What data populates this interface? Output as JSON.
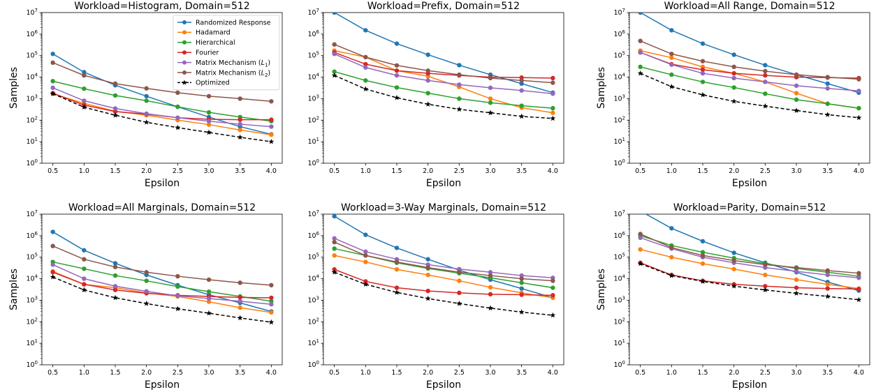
{
  "chart_data": [
    {
      "type": "line",
      "title": "Workload=Histogram, Domain=512",
      "xlabel": "Epsilon",
      "ylabel": "Samples",
      "x": [
        0.5,
        1.0,
        1.5,
        2.0,
        2.5,
        3.0,
        3.5,
        4.0
      ],
      "xticks": [
        "0.5",
        "1.0",
        "1.5",
        "2.0",
        "2.5",
        "3.0",
        "3.5",
        "4.0"
      ],
      "yscale": "log",
      "ylim": [
        1,
        10000000
      ],
      "yticks": [
        "10^0",
        "10^1",
        "10^2",
        "10^3",
        "10^4",
        "10^5",
        "10^6",
        "10^7"
      ],
      "grid": false,
      "legend": "top-right",
      "series": [
        {
          "name": "Randomized Response",
          "values": [
            120000,
            17000,
            4200,
            1300,
            420,
            140,
            50,
            22
          ]
        },
        {
          "name": "Hadamard",
          "values": [
            1700,
            600,
            260,
            170,
            100,
            62,
            35,
            21
          ]
        },
        {
          "name": "Hierarchical",
          "values": [
            6500,
            2900,
            1400,
            800,
            420,
            230,
            140,
            90
          ]
        },
        {
          "name": "Fourier",
          "values": [
            1800,
            500,
            250,
            190,
            130,
            110,
            105,
            105
          ]
        },
        {
          "name": "Matrix Mechanism (L1)",
          "values": [
            3200,
            800,
            350,
            200,
            130,
            90,
            65,
            50
          ]
        },
        {
          "name": "Matrix Mechanism (L2)",
          "values": [
            47000,
            12000,
            5000,
            3000,
            1900,
            1300,
            1000,
            750
          ]
        },
        {
          "name": "Optimized",
          "values": [
            1700,
            400,
            170,
            80,
            45,
            27,
            16,
            10
          ]
        }
      ]
    },
    {
      "type": "line",
      "title": "Workload=Prefix, Domain=512",
      "xlabel": "Epsilon",
      "ylabel": "",
      "x": [
        0.5,
        1.0,
        1.5,
        2.0,
        2.5,
        3.0,
        3.5,
        4.0
      ],
      "xticks": [
        "0.5",
        "1.0",
        "1.5",
        "2.0",
        "2.5",
        "3.0",
        "3.5",
        "4.0"
      ],
      "yscale": "log",
      "ylim": [
        1,
        10000000
      ],
      "yticks": [
        "10^0",
        "10^1",
        "10^2",
        "10^3",
        "10^4",
        "10^5",
        "10^6",
        "10^7"
      ],
      "grid": false,
      "series": [
        {
          "name": "Randomized Response",
          "values": [
            10000000,
            1500000,
            360000,
            110000,
            36000,
            13000,
            5000,
            1900
          ]
        },
        {
          "name": "Hadamard",
          "values": [
            170000,
            85000,
            20000,
            11000,
            3500,
            1000,
            380,
            220
          ]
        },
        {
          "name": "Hierarchical",
          "values": [
            18000,
            7000,
            3300,
            1800,
            1000,
            650,
            470,
            360
          ]
        },
        {
          "name": "Fourier",
          "values": [
            140000,
            40000,
            20000,
            15000,
            12000,
            10000,
            9500,
            9000
          ]
        },
        {
          "name": "Matrix Mechanism (L1)",
          "values": [
            120000,
            28000,
            12000,
            7000,
            4500,
            3200,
            2400,
            1700
          ]
        },
        {
          "name": "Matrix Mechanism (L2)",
          "values": [
            330000,
            85000,
            35000,
            20000,
            13000,
            9000,
            7000,
            5500
          ]
        },
        {
          "name": "Optimized",
          "values": [
            12000,
            2800,
            1100,
            550,
            320,
            220,
            150,
            120
          ]
        }
      ]
    },
    {
      "type": "line",
      "title": "Workload=All Range, Domain=512",
      "xlabel": "Epsilon",
      "ylabel": "Samples",
      "x": [
        0.5,
        1.0,
        1.5,
        2.0,
        2.5,
        3.0,
        3.5,
        4.0
      ],
      "xticks": [
        "0.5",
        "1.0",
        "1.5",
        "2.0",
        "2.5",
        "3.0",
        "3.5",
        "4.0"
      ],
      "yscale": "log",
      "ylim": [
        1,
        10000000
      ],
      "yticks": [
        "10^0",
        "10^1",
        "10^2",
        "10^3",
        "10^4",
        "10^5",
        "10^6",
        "10^7"
      ],
      "grid": false,
      "series": [
        {
          "name": "Randomized Response",
          "values": [
            10000000,
            1500000,
            360000,
            110000,
            36000,
            13000,
            5000,
            1900
          ]
        },
        {
          "name": "Hadamard",
          "values": [
            170000,
            80000,
            30000,
            15000,
            6000,
            1800,
            580,
            360
          ]
        },
        {
          "name": "Hierarchical",
          "values": [
            30000,
            13000,
            6000,
            3300,
            1700,
            900,
            580,
            360
          ]
        },
        {
          "name": "Fourier",
          "values": [
            140000,
            40000,
            22000,
            15000,
            12000,
            10000,
            9500,
            9000
          ]
        },
        {
          "name": "Matrix Mechanism (L1)",
          "values": [
            140000,
            38000,
            15000,
            9000,
            6000,
            4000,
            3000,
            2300
          ]
        },
        {
          "name": "Matrix Mechanism (L2)",
          "values": [
            480000,
            120000,
            55000,
            30000,
            19000,
            13000,
            10000,
            8000
          ]
        },
        {
          "name": "Optimized",
          "values": [
            15000,
            3600,
            1500,
            750,
            450,
            280,
            180,
            130
          ]
        }
      ]
    },
    {
      "type": "line",
      "title": "Workload=All Marginals, Domain=512",
      "xlabel": "Epsilon",
      "ylabel": "Samples",
      "x": [
        0.5,
        1.0,
        1.5,
        2.0,
        2.5,
        3.0,
        3.5,
        4.0
      ],
      "xticks": [
        "0.5",
        "1.0",
        "1.5",
        "2.0",
        "2.5",
        "3.0",
        "3.5",
        "4.0"
      ],
      "yscale": "log",
      "ylim": [
        1,
        10000000
      ],
      "yticks": [
        "10^0",
        "10^1",
        "10^2",
        "10^3",
        "10^4",
        "10^5",
        "10^6",
        "10^7"
      ],
      "grid": false,
      "series": [
        {
          "name": "Randomized Response",
          "values": [
            1500000,
            210000,
            52000,
            15000,
            5000,
            1800,
            750,
            300
          ]
        },
        {
          "name": "Hadamard",
          "values": [
            22000,
            5500,
            3800,
            2200,
            1500,
            850,
            450,
            270
          ]
        },
        {
          "name": "Hierarchical",
          "values": [
            60000,
            29000,
            14000,
            8000,
            4300,
            2500,
            1500,
            900
          ]
        },
        {
          "name": "Fourier",
          "values": [
            20000,
            5500,
            3000,
            2100,
            1700,
            1500,
            1350,
            1300
          ]
        },
        {
          "name": "Matrix Mechanism (L1)",
          "values": [
            45000,
            10000,
            4500,
            2600,
            1600,
            1200,
            900,
            650
          ]
        },
        {
          "name": "Matrix Mechanism (L2)",
          "values": [
            330000,
            80000,
            35000,
            20000,
            13000,
            9000,
            6500,
            5000
          ]
        },
        {
          "name": "Optimized",
          "values": [
            12000,
            3000,
            1300,
            700,
            400,
            250,
            150,
            95
          ]
        }
      ]
    },
    {
      "type": "line",
      "title": "Workload=3-Way Marginals, Domain=512",
      "xlabel": "Epsilon",
      "ylabel": "",
      "x": [
        0.5,
        1.0,
        1.5,
        2.0,
        2.5,
        3.0,
        3.5,
        4.0
      ],
      "xticks": [
        "0.5",
        "1.0",
        "1.5",
        "2.0",
        "2.5",
        "3.0",
        "3.5",
        "4.0"
      ],
      "yscale": "log",
      "ylim": [
        1,
        10000000
      ],
      "yticks": [
        "10^0",
        "10^1",
        "10^2",
        "10^3",
        "10^4",
        "10^5",
        "10^6",
        "10^7"
      ],
      "grid": false,
      "series": [
        {
          "name": "Randomized Response",
          "values": [
            8000000,
            1100000,
            270000,
            80000,
            25000,
            9000,
            3500,
            1300
          ]
        },
        {
          "name": "Hadamard",
          "values": [
            120000,
            60000,
            27000,
            15000,
            8000,
            4000,
            2200,
            1300
          ]
        },
        {
          "name": "Hierarchical",
          "values": [
            250000,
            120000,
            55000,
            30000,
            18000,
            11000,
            6500,
            3800
          ]
        },
        {
          "name": "Fourier",
          "values": [
            27000,
            7500,
            3800,
            2700,
            2200,
            1900,
            1800,
            1700
          ]
        },
        {
          "name": "Matrix Mechanism (L1)",
          "values": [
            750000,
            180000,
            80000,
            45000,
            28000,
            20000,
            14000,
            11000
          ]
        },
        {
          "name": "Matrix Mechanism (L2)",
          "values": [
            500000,
            120000,
            60000,
            33000,
            20000,
            14000,
            10000,
            8000
          ]
        },
        {
          "name": "Optimized",
          "values": [
            20000,
            5500,
            2300,
            1200,
            700,
            430,
            280,
            200
          ]
        }
      ]
    },
    {
      "type": "line",
      "title": "Workload=Parity, Domain=512",
      "xlabel": "Epsilon",
      "ylabel": "Samples",
      "x": [
        0.5,
        1.0,
        1.5,
        2.0,
        2.5,
        3.0,
        3.5,
        4.0
      ],
      "xticks": [
        "0.5",
        "1.0",
        "1.5",
        "2.0",
        "2.5",
        "3.0",
        "3.5",
        "4.0"
      ],
      "yscale": "log",
      "ylim": [
        1,
        10000000
      ],
      "yticks": [
        "10^0",
        "10^1",
        "10^2",
        "10^3",
        "10^4",
        "10^5",
        "10^6",
        "10^7"
      ],
      "grid": false,
      "series": [
        {
          "name": "Randomized Response",
          "values": [
            14000000,
            2200000,
            550000,
            160000,
            55000,
            20000,
            7000,
            2800
          ]
        },
        {
          "name": "Hadamard",
          "values": [
            230000,
            100000,
            50000,
            28000,
            15000,
            9000,
            5500,
            3500
          ]
        },
        {
          "name": "Hierarchical",
          "values": [
            1000000,
            350000,
            170000,
            90000,
            50000,
            30000,
            20000,
            13000
          ]
        },
        {
          "name": "Fourier",
          "values": [
            55000,
            15000,
            8000,
            5500,
            4500,
            3800,
            3500,
            3300
          ]
        },
        {
          "name": "Matrix Mechanism (L1)",
          "values": [
            800000,
            250000,
            100000,
            55000,
            33000,
            22000,
            15000,
            11000
          ]
        },
        {
          "name": "Matrix Mechanism (L2)",
          "values": [
            1200000,
            280000,
            120000,
            70000,
            45000,
            33000,
            24000,
            18000
          ]
        },
        {
          "name": "Optimized",
          "values": [
            50000,
            14000,
            7500,
            4500,
            3000,
            2100,
            1500,
            1050
          ]
        }
      ]
    }
  ],
  "legend": {
    "entries": [
      {
        "series": "Randomized Response",
        "text": "Randomized Response",
        "sub": ""
      },
      {
        "series": "Hadamard",
        "text": "Hadamard",
        "sub": ""
      },
      {
        "series": "Hierarchical",
        "text": "Hierarchical",
        "sub": ""
      },
      {
        "series": "Fourier",
        "text": "Fourier",
        "sub": ""
      },
      {
        "series": "Matrix Mechanism (L1)",
        "text": "Matrix Mechanism (",
        "sub": "1"
      },
      {
        "series": "Matrix Mechanism (L2)",
        "text": "Matrix Mechanism (",
        "sub": "2"
      },
      {
        "series": "Optimized",
        "text": "Optimized",
        "sub": ""
      }
    ]
  },
  "styles": {
    "Randomized Response": {
      "color": "#1f77b4",
      "marker": "circle",
      "dash": false
    },
    "Hadamard": {
      "color": "#ff7f0e",
      "marker": "circle",
      "dash": false
    },
    "Hierarchical": {
      "color": "#2ca02c",
      "marker": "circle",
      "dash": false
    },
    "Fourier": {
      "color": "#d62728",
      "marker": "circle",
      "dash": false
    },
    "Matrix Mechanism (L1)": {
      "color": "#9467bd",
      "marker": "circle",
      "dash": false
    },
    "Matrix Mechanism (L2)": {
      "color": "#8c564b",
      "marker": "circle",
      "dash": false
    },
    "Optimized": {
      "color": "#000000",
      "marker": "star",
      "dash": true
    }
  }
}
